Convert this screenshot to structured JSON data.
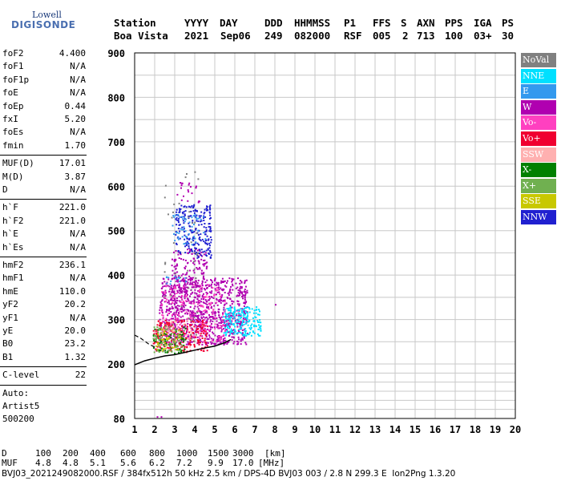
{
  "logo": {
    "top": "Lowell",
    "bottom": "DIGISONDE"
  },
  "header": {
    "line1": [
      "Station",
      "YYYY",
      "DAY",
      "DDD",
      "HHMMSS",
      "P1",
      "FFS",
      "S",
      "AXN",
      "PPS",
      "IGA",
      "PS"
    ],
    "line2": [
      "Boa Vista",
      "2021",
      "Sep06",
      "249",
      "082000",
      "RSF",
      "005",
      "2",
      "713",
      "100",
      "03+",
      "30"
    ]
  },
  "params": {
    "group1": [
      {
        "name": "foF2",
        "value": "4.400"
      },
      {
        "name": "foF1",
        "value": "N/A"
      },
      {
        "name": "foF1p",
        "value": "N/A"
      },
      {
        "name": "foE",
        "value": "N/A"
      },
      {
        "name": "foEp",
        "value": "0.44"
      },
      {
        "name": "fxI",
        "value": "5.20"
      },
      {
        "name": "foEs",
        "value": "N/A"
      },
      {
        "name": "fmin",
        "value": "1.70"
      }
    ],
    "group2": [
      {
        "name": "MUF(D)",
        "value": "17.01"
      },
      {
        "name": "M(D)",
        "value": "3.87"
      },
      {
        "name": "D",
        "value": "N/A"
      }
    ],
    "group3": [
      {
        "name": "h`F",
        "value": "221.0"
      },
      {
        "name": "h`F2",
        "value": "221.0"
      },
      {
        "name": "h`E",
        "value": "N/A"
      },
      {
        "name": "h`Es",
        "value": "N/A"
      }
    ],
    "group4": [
      {
        "name": "hmF2",
        "value": "236.1"
      },
      {
        "name": "hmF1",
        "value": "N/A"
      },
      {
        "name": "hmE",
        "value": "110.0"
      },
      {
        "name": "yF2",
        "value": "20.2"
      },
      {
        "name": "yF1",
        "value": "N/A"
      },
      {
        "name": "yE",
        "value": "20.0"
      },
      {
        "name": "B0",
        "value": "23.2"
      },
      {
        "name": "B1",
        "value": "1.32"
      }
    ],
    "clevel": {
      "name": "C-level",
      "value": "22"
    },
    "auto": [
      "Auto:",
      "Artist5",
      "500200"
    ]
  },
  "legend": [
    {
      "label": "NoVal",
      "color": "#808080"
    },
    {
      "label": "NNE",
      "color": "#00e0ff"
    },
    {
      "label": "E",
      "color": "#3399ee"
    },
    {
      "label": "W",
      "color": "#b000b0"
    },
    {
      "label": "Vo-",
      "color": "#ff40c0"
    },
    {
      "label": "Vo+",
      "color": "#f00030"
    },
    {
      "label": "SSW",
      "color": "#ffb0b0"
    },
    {
      "label": "X-",
      "color": "#008000"
    },
    {
      "label": "X+",
      "color": "#70b050"
    },
    {
      "label": "SSE",
      "color": "#c8c800"
    },
    {
      "label": "NNW",
      "color": "#2020d0"
    }
  ],
  "bottom": {
    "line1": [
      "D",
      "100",
      "200",
      "400",
      "600",
      "800",
      "1000",
      "1500",
      "3000",
      "[km]"
    ],
    "line2": [
      "MUF",
      "4.8",
      "4.8",
      "5.1",
      "5.6",
      "6.2",
      "7.2",
      "9.9",
      "17.0",
      "[MHz]"
    ],
    "footer": "BVJ03_2021249082000.RSF / 384fx512h 50 kHz 2.5 km / DPS-4D BVJ03 003 / 2.8 N 299.3 E  Ion2Png 1.3.20"
  },
  "chart_data": {
    "type": "scatter",
    "xlabel": "",
    "ylabel": "",
    "xlim": [
      1,
      20
    ],
    "ylim": [
      80,
      900
    ],
    "xticks": [
      1,
      2,
      3,
      4,
      5,
      6,
      7,
      8,
      9,
      10,
      11,
      12,
      13,
      14,
      15,
      16,
      17,
      18,
      19,
      20
    ],
    "yticks": [
      80,
      200,
      300,
      400,
      500,
      600,
      700,
      800,
      900
    ],
    "grid": true,
    "legend_position": "right",
    "regions": [
      {
        "series": "W",
        "x": [
          2.2,
          6.6
        ],
        "y": [
          245,
          395
        ],
        "density": 900
      },
      {
        "series": "W",
        "x": [
          2.8,
          4.6
        ],
        "y": [
          280,
          460
        ],
        "density": 250
      },
      {
        "series": "NNW",
        "x": [
          3.0,
          4.8
        ],
        "y": [
          440,
          560
        ],
        "density": 220
      },
      {
        "series": "W",
        "x": [
          3.0,
          4.2
        ],
        "y": [
          560,
          610
        ],
        "density": 20
      },
      {
        "series": "NNE",
        "x": [
          5.4,
          7.3
        ],
        "y": [
          265,
          330
        ],
        "density": 200
      },
      {
        "series": "E",
        "x": [
          2.8,
          4.5
        ],
        "y": [
          470,
          540
        ],
        "density": 50
      },
      {
        "series": "Vo+",
        "x": [
          1.9,
          4.6
        ],
        "y": [
          228,
          300
        ],
        "density": 250
      },
      {
        "series": "Vo-",
        "x": [
          2.3,
          5.5
        ],
        "y": [
          250,
          380
        ],
        "density": 180
      },
      {
        "series": "X-",
        "x": [
          1.9,
          3.5
        ],
        "y": [
          225,
          285
        ],
        "density": 80
      },
      {
        "series": "X+",
        "x": [
          1.9,
          3.4
        ],
        "y": [
          228,
          290
        ],
        "density": 60
      },
      {
        "series": "SSE",
        "x": [
          2.0,
          3.3
        ],
        "y": [
          230,
          280
        ],
        "density": 40
      },
      {
        "series": "SSW",
        "x": [
          2.2,
          3.8
        ],
        "y": [
          240,
          300
        ],
        "density": 40
      },
      {
        "series": "NoVal",
        "x": [
          2.4,
          4.2
        ],
        "y": [
          230,
          660
        ],
        "density": 50
      },
      {
        "series": "E",
        "x": [
          2.5,
          3.6
        ],
        "y": [
          380,
          400
        ],
        "density": 15
      }
    ],
    "isolated_points": [
      {
        "series": "W",
        "x": 8.0,
        "y": 335
      },
      {
        "series": "W",
        "x": 2.1,
        "y": 85
      },
      {
        "series": "W",
        "x": 2.3,
        "y": 85
      }
    ],
    "profile_curve": {
      "x": [
        1.0,
        1.5,
        2.0,
        2.5,
        3.0,
        3.5,
        4.0,
        4.5,
        5.0,
        5.5,
        5.8
      ],
      "y": [
        198,
        207,
        213,
        218,
        221,
        226,
        231,
        236,
        240,
        248,
        255
      ]
    },
    "dashed_curve": {
      "x": [
        1.0,
        1.3,
        1.7,
        2.0
      ],
      "y": [
        265,
        258,
        245,
        238
      ]
    }
  }
}
